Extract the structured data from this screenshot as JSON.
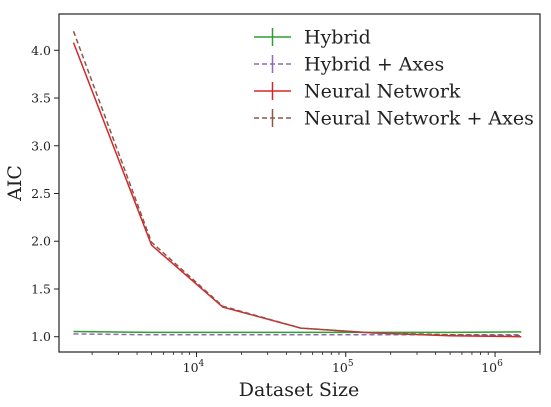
{
  "chart_data": {
    "type": "line",
    "xlabel": "Dataset Size",
    "ylabel": "AIC",
    "x_scale": "log",
    "xlim": [
      1200,
      2000000
    ],
    "ylim": [
      0.84,
      4.38
    ],
    "x_ticks": [
      {
        "value": 10000,
        "base": "10",
        "exp": "4"
      },
      {
        "value": 100000,
        "base": "10",
        "exp": "5"
      },
      {
        "value": 1000000,
        "base": "10",
        "exp": "6"
      }
    ],
    "y_ticks": [
      {
        "value": 1.0,
        "label": "1.0"
      },
      {
        "value": 1.5,
        "label": "1.5"
      },
      {
        "value": 2.0,
        "label": "2.0"
      },
      {
        "value": 2.5,
        "label": "2.5"
      },
      {
        "value": 3.0,
        "label": "3.0"
      },
      {
        "value": 3.5,
        "label": "3.5"
      },
      {
        "value": 4.0,
        "label": "4.0"
      }
    ],
    "grid": false,
    "legend_position": "top-right",
    "x": [
      1500,
      5000,
      15000,
      50000,
      150000,
      500000,
      1500000
    ],
    "series": [
      {
        "name": "Hybrid",
        "color": "#2ca02c",
        "dashed": false,
        "values": [
          1.055,
          1.045,
          1.045,
          1.045,
          1.045,
          1.045,
          1.05
        ]
      },
      {
        "name": "Hybrid + Axes",
        "color": "#9467bd",
        "dashed": true,
        "values": [
          1.03,
          1.02,
          1.02,
          1.02,
          1.02,
          1.02,
          1.02
        ]
      },
      {
        "name": "Neural Network",
        "color": "#d62728",
        "dashed": false,
        "values": [
          4.08,
          1.96,
          1.31,
          1.09,
          1.04,
          1.01,
          1.0
        ]
      },
      {
        "name": "Neural Network + Axes",
        "color": "#8c564b",
        "dashed": true,
        "values": [
          4.2,
          1.99,
          1.32,
          1.09,
          1.04,
          1.02,
          1.01
        ]
      }
    ]
  }
}
